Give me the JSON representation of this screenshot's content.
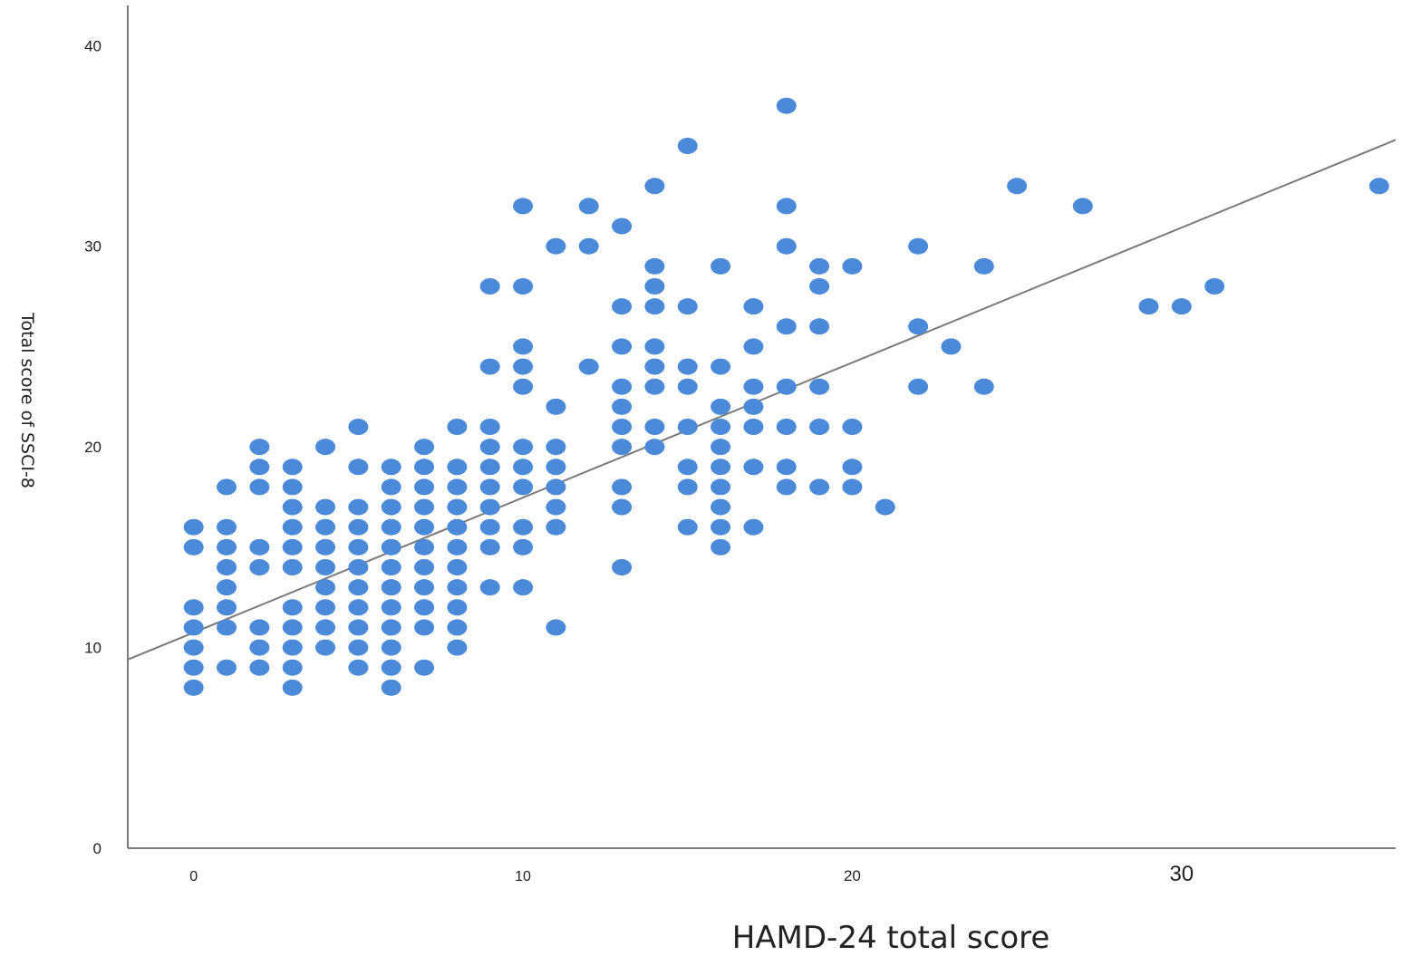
{
  "chart_data": {
    "type": "scatter",
    "xlabel": "HAMD-24 total score",
    "ylabel": "Total score of SSCI-8",
    "xlim": [
      -2,
      36.5
    ],
    "ylim": [
      0,
      42
    ],
    "xticks": [
      0,
      10,
      20,
      30
    ],
    "yticks": [
      0,
      10,
      20,
      30,
      40
    ],
    "grid": false,
    "marker_color": "#4a8ad8",
    "fit_line": {
      "x": [
        -2,
        36.5
      ],
      "y": [
        9.4,
        35.3
      ],
      "color": "#7a7a7a"
    },
    "points": [
      [
        0,
        16
      ],
      [
        0,
        15
      ],
      [
        0,
        12
      ],
      [
        0,
        11
      ],
      [
        0,
        10
      ],
      [
        0,
        9
      ],
      [
        0,
        8
      ],
      [
        1,
        18
      ],
      [
        1,
        16
      ],
      [
        1,
        15
      ],
      [
        1,
        14
      ],
      [
        1,
        13
      ],
      [
        1,
        12
      ],
      [
        1,
        11
      ],
      [
        1,
        9
      ],
      [
        2,
        20
      ],
      [
        2,
        19
      ],
      [
        2,
        18
      ],
      [
        2,
        15
      ],
      [
        2,
        14
      ],
      [
        2,
        11
      ],
      [
        2,
        10
      ],
      [
        2,
        9
      ],
      [
        3,
        19
      ],
      [
        3,
        18
      ],
      [
        3,
        17
      ],
      [
        3,
        16
      ],
      [
        3,
        15
      ],
      [
        3,
        14
      ],
      [
        3,
        12
      ],
      [
        3,
        11
      ],
      [
        3,
        10
      ],
      [
        3,
        9
      ],
      [
        3,
        8
      ],
      [
        4,
        20
      ],
      [
        4,
        17
      ],
      [
        4,
        16
      ],
      [
        4,
        15
      ],
      [
        4,
        14
      ],
      [
        4,
        13
      ],
      [
        4,
        12
      ],
      [
        4,
        11
      ],
      [
        4,
        10
      ],
      [
        5,
        21
      ],
      [
        5,
        19
      ],
      [
        5,
        17
      ],
      [
        5,
        16
      ],
      [
        5,
        15
      ],
      [
        5,
        14
      ],
      [
        5,
        13
      ],
      [
        5,
        12
      ],
      [
        5,
        11
      ],
      [
        5,
        10
      ],
      [
        5,
        9
      ],
      [
        6,
        19
      ],
      [
        6,
        18
      ],
      [
        6,
        17
      ],
      [
        6,
        16
      ],
      [
        6,
        15
      ],
      [
        6,
        14
      ],
      [
        6,
        13
      ],
      [
        6,
        12
      ],
      [
        6,
        11
      ],
      [
        6,
        10
      ],
      [
        6,
        9
      ],
      [
        6,
        8
      ],
      [
        7,
        20
      ],
      [
        7,
        19
      ],
      [
        7,
        18
      ],
      [
        7,
        17
      ],
      [
        7,
        16
      ],
      [
        7,
        15
      ],
      [
        7,
        14
      ],
      [
        7,
        13
      ],
      [
        7,
        12
      ],
      [
        7,
        11
      ],
      [
        7,
        9
      ],
      [
        8,
        21
      ],
      [
        8,
        19
      ],
      [
        8,
        18
      ],
      [
        8,
        17
      ],
      [
        8,
        16
      ],
      [
        8,
        15
      ],
      [
        8,
        14
      ],
      [
        8,
        13
      ],
      [
        8,
        12
      ],
      [
        8,
        11
      ],
      [
        8,
        10
      ],
      [
        9,
        28
      ],
      [
        9,
        24
      ],
      [
        9,
        21
      ],
      [
        9,
        20
      ],
      [
        9,
        19
      ],
      [
        9,
        18
      ],
      [
        9,
        17
      ],
      [
        9,
        16
      ],
      [
        9,
        15
      ],
      [
        9,
        13
      ],
      [
        10,
        32
      ],
      [
        10,
        28
      ],
      [
        10,
        25
      ],
      [
        10,
        24
      ],
      [
        10,
        23
      ],
      [
        10,
        20
      ],
      [
        10,
        19
      ],
      [
        10,
        18
      ],
      [
        10,
        16
      ],
      [
        10,
        15
      ],
      [
        10,
        13
      ],
      [
        11,
        30
      ],
      [
        11,
        22
      ],
      [
        11,
        20
      ],
      [
        11,
        19
      ],
      [
        11,
        18
      ],
      [
        11,
        17
      ],
      [
        11,
        16
      ],
      [
        11,
        11
      ],
      [
        12,
        32
      ],
      [
        12,
        30
      ],
      [
        12,
        24
      ],
      [
        13,
        31
      ],
      [
        13,
        27
      ],
      [
        13,
        25
      ],
      [
        13,
        23
      ],
      [
        13,
        22
      ],
      [
        13,
        21
      ],
      [
        13,
        20
      ],
      [
        13,
        18
      ],
      [
        13,
        17
      ],
      [
        13,
        14
      ],
      [
        14,
        33
      ],
      [
        14,
        29
      ],
      [
        14,
        28
      ],
      [
        14,
        27
      ],
      [
        14,
        25
      ],
      [
        14,
        24
      ],
      [
        14,
        23
      ],
      [
        14,
        21
      ],
      [
        14,
        20
      ],
      [
        15,
        35
      ],
      [
        15,
        27
      ],
      [
        15,
        24
      ],
      [
        15,
        23
      ],
      [
        15,
        21
      ],
      [
        15,
        19
      ],
      [
        15,
        18
      ],
      [
        15,
        16
      ],
      [
        16,
        29
      ],
      [
        16,
        24
      ],
      [
        16,
        22
      ],
      [
        16,
        21
      ],
      [
        16,
        20
      ],
      [
        16,
        19
      ],
      [
        16,
        18
      ],
      [
        16,
        17
      ],
      [
        16,
        16
      ],
      [
        16,
        15
      ],
      [
        17,
        27
      ],
      [
        17,
        25
      ],
      [
        17,
        23
      ],
      [
        17,
        22
      ],
      [
        17,
        21
      ],
      [
        17,
        19
      ],
      [
        17,
        16
      ],
      [
        18,
        37
      ],
      [
        18,
        32
      ],
      [
        18,
        30
      ],
      [
        18,
        26
      ],
      [
        18,
        23
      ],
      [
        18,
        21
      ],
      [
        18,
        19
      ],
      [
        18,
        18
      ],
      [
        19,
        29
      ],
      [
        19,
        28
      ],
      [
        19,
        26
      ],
      [
        19,
        23
      ],
      [
        19,
        21
      ],
      [
        19,
        18
      ],
      [
        20,
        29
      ],
      [
        20,
        21
      ],
      [
        20,
        19
      ],
      [
        20,
        18
      ],
      [
        21,
        17
      ],
      [
        22,
        30
      ],
      [
        22,
        26
      ],
      [
        22,
        23
      ],
      [
        23,
        25
      ],
      [
        24,
        29
      ],
      [
        24,
        23
      ],
      [
        25,
        33
      ],
      [
        27,
        32
      ],
      [
        29,
        27
      ],
      [
        30,
        27
      ],
      [
        31,
        28
      ],
      [
        36,
        33
      ]
    ]
  }
}
